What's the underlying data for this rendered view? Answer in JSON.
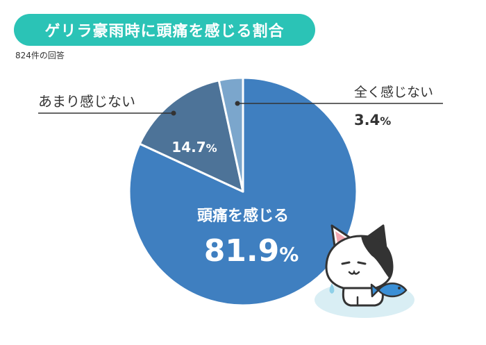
{
  "title": "ゲリラ豪雨時に頭痛を感じる割合",
  "subtitle": "824件の回答",
  "colors": {
    "title_pill": "#2bc3b6",
    "leader_line": "#333333",
    "cat_ground": "#d9eef4",
    "cat_fish": "#3a8fd6"
  },
  "chart_data": {
    "type": "pie",
    "unit": "%",
    "start": "12 o'clock, clockwise",
    "slices": [
      {
        "label": "頭痛を感じる",
        "value": 81.9,
        "value_text": "81.9",
        "color": "#3f7fc0"
      },
      {
        "label": "あまり感じない",
        "value": 14.7,
        "value_text": "14.7",
        "color": "#4d7398"
      },
      {
        "label": "全く感じない",
        "value": 3.4,
        "value_text": "3.4",
        "color": "#7ba6cc"
      }
    ]
  },
  "illustration": {
    "icon": "cat-holding-fish-icon"
  }
}
